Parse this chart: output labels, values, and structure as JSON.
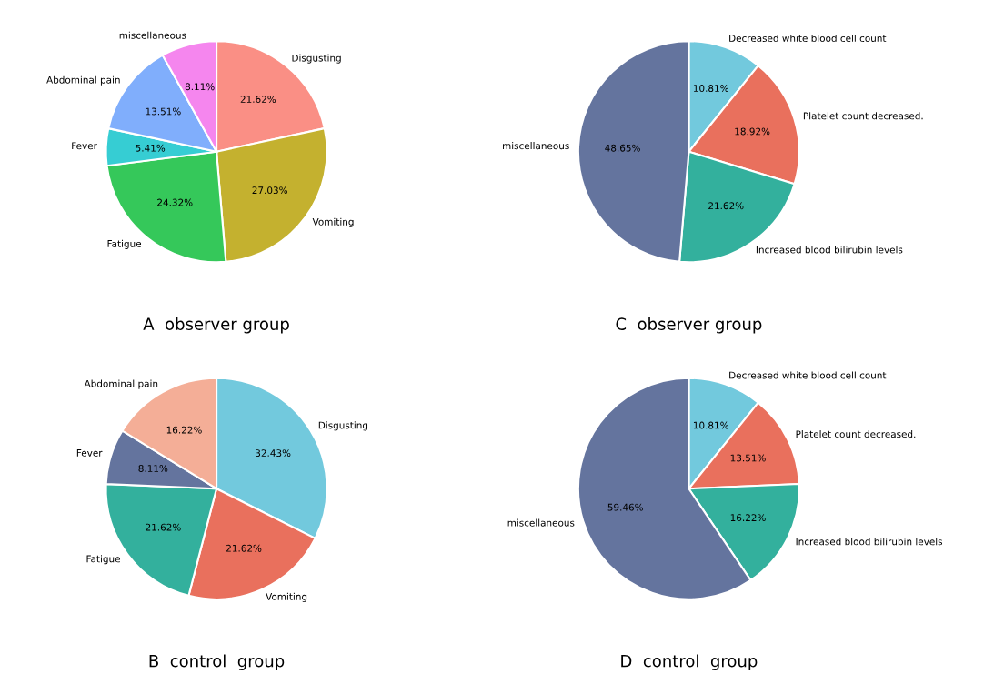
{
  "chart_data": [
    {
      "type": "pie",
      "title": "A  observer group",
      "categories": [
        "Disgusting",
        "Vomiting",
        "Fatigue",
        "Fever",
        "Abdominal pain",
        "miscellaneous"
      ],
      "values": [
        21.62,
        27.03,
        24.32,
        5.41,
        13.51,
        8.11
      ],
      "value_labels": [
        "21.62%",
        "27.03%",
        "24.32%",
        "5.41%",
        "13.51%",
        "8.11%"
      ],
      "colors": [
        "#fa8f85",
        "#c4b12f",
        "#35c85a",
        "#36cdd3",
        "#80aefc",
        "#f586ee"
      ]
    },
    {
      "type": "pie",
      "title": "C  observer group",
      "categories": [
        "Decreased white blood cell count",
        "Platelet count decreased.",
        "Increased blood bilirubin levels",
        "miscellaneous"
      ],
      "values": [
        10.81,
        18.92,
        21.62,
        48.65
      ],
      "value_labels": [
        "10.81%",
        "18.92%",
        "21.62%",
        "48.65%"
      ],
      "colors": [
        "#72c9dd",
        "#e9705d",
        "#33b09d",
        "#64749e"
      ]
    },
    {
      "type": "pie",
      "title": "B  control  group",
      "categories": [
        "Disgusting",
        "Vomiting",
        "Fatigue",
        "Fever",
        "Abdominal pain"
      ],
      "values": [
        32.43,
        21.62,
        21.62,
        8.11,
        16.22
      ],
      "value_labels": [
        "32.43%",
        "21.62%",
        "21.62%",
        "8.11%",
        "16.22%"
      ],
      "colors": [
        "#72c9dd",
        "#e9705d",
        "#33b09d",
        "#64749e",
        "#f4ae97"
      ]
    },
    {
      "type": "pie",
      "title": "D  control  group",
      "categories": [
        "Decreased white blood cell count",
        "Platelet count decreased.",
        "Increased blood bilirubin levels",
        "miscellaneous"
      ],
      "values": [
        10.81,
        13.51,
        16.22,
        59.46
      ],
      "value_labels": [
        "10.81%",
        "13.51%",
        "16.22%",
        "59.46%"
      ],
      "colors": [
        "#72c9dd",
        "#e9705d",
        "#33b09d",
        "#64749e"
      ]
    }
  ]
}
